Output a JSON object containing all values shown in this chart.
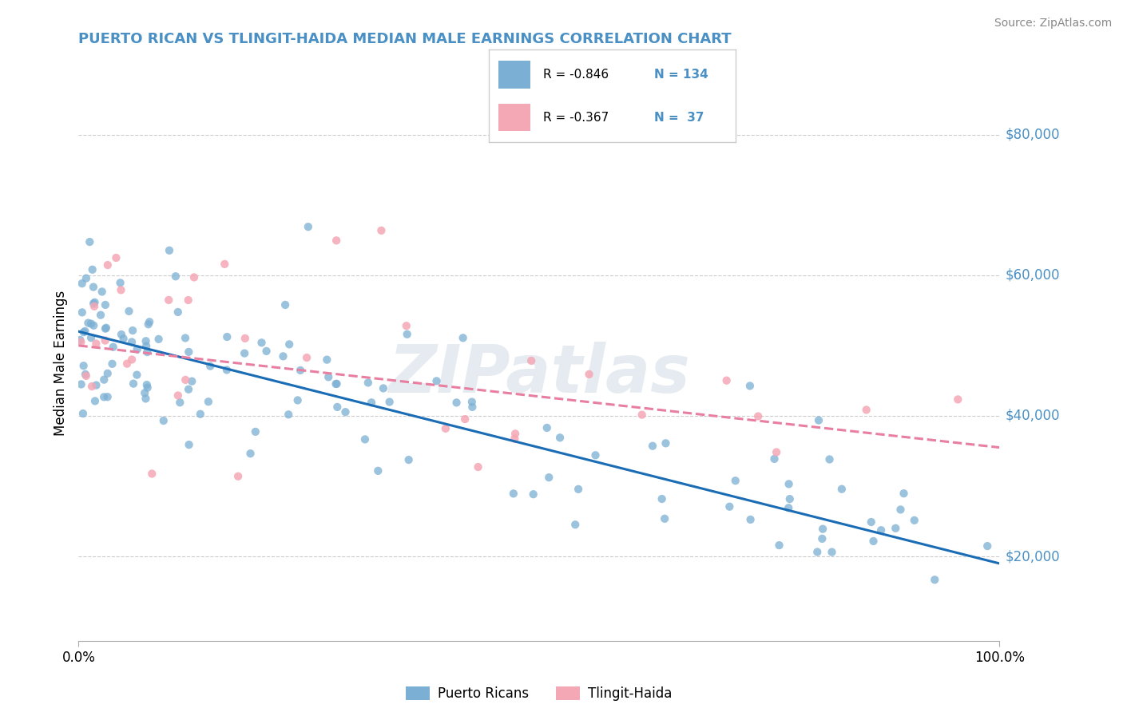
{
  "title": "PUERTO RICAN VS TLINGIT-HAIDA MEDIAN MALE EARNINGS CORRELATION CHART",
  "source": "Source: ZipAtlas.com",
  "ylabel": "Median Male Earnings",
  "yticks": [
    20000,
    40000,
    60000,
    80000
  ],
  "ytick_labels": [
    "$20,000",
    "$40,000",
    "$60,000",
    "$80,000"
  ],
  "xmin": 0.0,
  "xmax": 100.0,
  "ymin": 8000,
  "ymax": 87000,
  "blue_R": -0.846,
  "blue_N": 134,
  "pink_R": -0.367,
  "pink_N": 37,
  "legend_label_blue": "Puerto Ricans",
  "legend_label_pink": "Tlingit-Haida",
  "watermark": "ZIPatlas",
  "blue_dot_color": "#7bafd4",
  "pink_dot_color": "#f4a7b4",
  "blue_line_color": "#1a6cb5",
  "pink_line_color": "#e87fa0",
  "title_color": "#4a90c4",
  "axis_label_color": "#4a90c4",
  "grid_color": "#cccccc",
  "blue_line_x": [
    0,
    100
  ],
  "blue_line_y": [
    52000,
    19000
  ],
  "pink_line_x": [
    0,
    100
  ],
  "pink_line_y": [
    50000,
    35500
  ]
}
